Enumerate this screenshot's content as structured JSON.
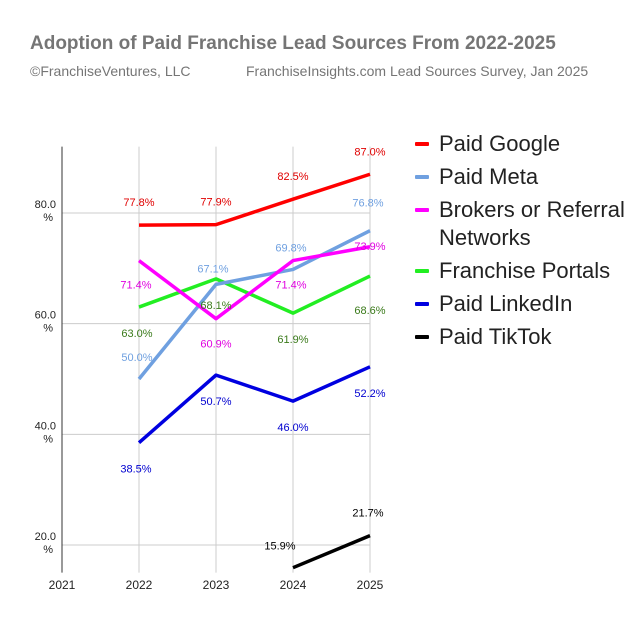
{
  "header": {
    "title": "Adoption of Paid Franchise Lead Sources From 2022-2025",
    "copyright": "©FranchiseVentures, LLC",
    "source": "FranchiseInsights.com Lead Sources Survey, Jan 2025"
  },
  "chart_data": {
    "type": "line",
    "title": "Adoption of Paid Franchise Lead Sources From 2022-2025",
    "xlabel": "",
    "ylabel": "",
    "x_ticks": [
      "2021",
      "2022",
      "2023",
      "2024",
      "2025"
    ],
    "y_ticks": [
      "20.0 %",
      "40.0 %",
      "60.0 %",
      "80.0 %"
    ],
    "xlim": [
      2021,
      2025
    ],
    "ylim": [
      15,
      92
    ],
    "grid": true,
    "legend_position": "right",
    "series": [
      {
        "name": "Paid Google",
        "color": "#ff0000",
        "x": [
          2022,
          2023,
          2024,
          2025
        ],
        "values": [
          77.8,
          77.9,
          82.5,
          87.0
        ],
        "labels": [
          "77.8%",
          "77.9%",
          "82.5%",
          "87.0%"
        ],
        "label_colors": [
          "#e00000",
          "#e00000",
          "#e00000",
          "#e00000"
        ]
      },
      {
        "name": "Paid Meta",
        "color": "#6fa0e0",
        "x": [
          2022,
          2023,
          2024,
          2025
        ],
        "values": [
          50.0,
          67.1,
          69.8,
          76.8
        ],
        "labels": [
          "50.0%",
          "67.1%",
          "69.8%",
          "76.8%"
        ],
        "label_colors": [
          "#6fa0e0",
          "#6fa0e0",
          "#6fa0e0",
          "#6fa0e0"
        ]
      },
      {
        "name": "Brokers or Referral Networks",
        "color": "#ff00ff",
        "x": [
          2022,
          2023,
          2024,
          2025
        ],
        "values": [
          71.4,
          60.9,
          71.4,
          73.9
        ],
        "labels": [
          "71.4%",
          "60.9%",
          "71.4%",
          "73.9%"
        ],
        "label_colors": [
          "#e000e0",
          "#e000e0",
          "#e000e0",
          "#e000e0"
        ]
      },
      {
        "name": "Franchise Portals",
        "color": "#22ee22",
        "x": [
          2022,
          2023,
          2024,
          2025
        ],
        "values": [
          63.0,
          68.1,
          61.9,
          68.6
        ],
        "labels": [
          "63.0%",
          "68.1%",
          "61.9%",
          "68.6%"
        ],
        "label_colors": [
          "#3a7a1a",
          "#3a7a1a",
          "#3a7a1a",
          "#3a7a1a"
        ]
      },
      {
        "name": "Paid LinkedIn",
        "color": "#0000e0",
        "x": [
          2022,
          2023,
          2024,
          2025
        ],
        "values": [
          38.5,
          50.7,
          46.0,
          52.2
        ],
        "labels": [
          "38.5%",
          "50.7%",
          "46.0%",
          "52.2%"
        ],
        "label_colors": [
          "#0000d0",
          "#0000d0",
          "#0000d0",
          "#0000d0"
        ]
      },
      {
        "name": "Paid TikTok",
        "color": "#000000",
        "x": [
          2024,
          2025
        ],
        "values": [
          15.9,
          21.7
        ],
        "labels": [
          "15.9%",
          "21.7%"
        ],
        "label_colors": [
          "#000000",
          "#000000"
        ]
      }
    ]
  }
}
